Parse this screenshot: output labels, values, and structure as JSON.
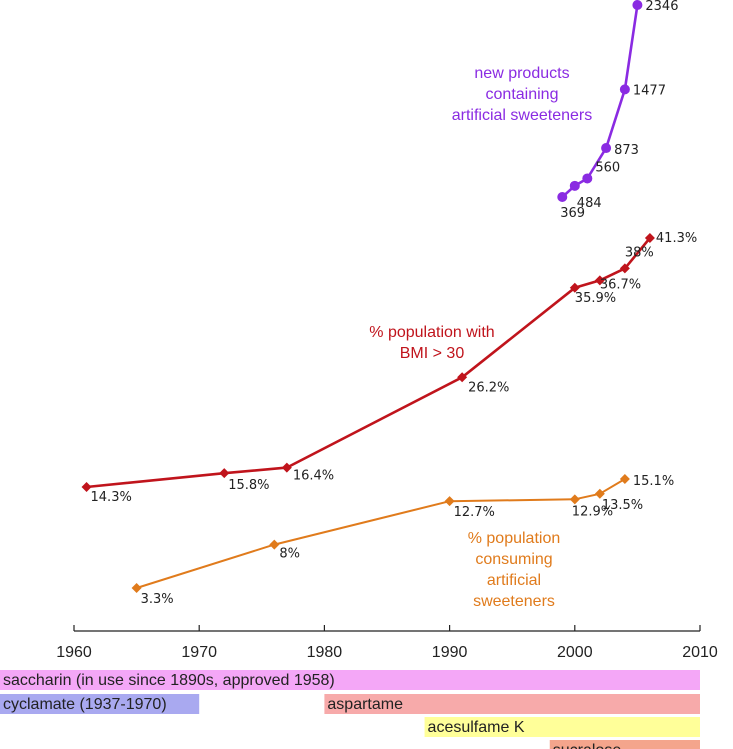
{
  "chart_data": {
    "type": "line",
    "x_axis": {
      "range": [
        1960,
        2010
      ],
      "tick_labels": [
        "1960",
        "1970",
        "1980",
        "1990",
        "2000",
        "2010"
      ],
      "grid": false
    },
    "series": [
      {
        "name": "new products containing artificial sweeteners",
        "label_lines": [
          "new products",
          "containing",
          "artificial sweeteners"
        ],
        "color": "#8a2be2",
        "marker": "circle",
        "points": [
          {
            "x": 1999,
            "y": 369,
            "label": "369"
          },
          {
            "x": 2000,
            "y": 484,
            "label": "484"
          },
          {
            "x": 2001,
            "y": 560,
            "label": "560"
          },
          {
            "x": 2002.5,
            "y": 873,
            "label": "873"
          },
          {
            "x": 2004,
            "y": 1477,
            "label": "1477"
          },
          {
            "x": 2005,
            "y": 2346,
            "label": "2346"
          }
        ]
      },
      {
        "name": "% population with BMI > 30",
        "label_lines": [
          "% population with",
          "BMI > 30"
        ],
        "color": "#c0141c",
        "marker": "diamond",
        "points": [
          {
            "x": 1961,
            "y": 14.3,
            "label": "14.3%"
          },
          {
            "x": 1972,
            "y": 15.8,
            "label": "15.8%"
          },
          {
            "x": 1977,
            "y": 16.4,
            "label": "16.4%"
          },
          {
            "x": 1991,
            "y": 26.2,
            "label": "26.2%"
          },
          {
            "x": 2000,
            "y": 35.9,
            "label": "35.9%"
          },
          {
            "x": 2002,
            "y": 36.7,
            "label": "36.7%"
          },
          {
            "x": 2004,
            "y": 38.0,
            "label": "38%"
          },
          {
            "x": 2006,
            "y": 41.3,
            "label": "41.3%"
          }
        ]
      },
      {
        "name": "% population consuming artificial sweeteners",
        "label_lines": [
          "% population",
          "consuming",
          "artificial",
          "sweeteners"
        ],
        "color": "#e07b1c",
        "marker": "diamond",
        "points": [
          {
            "x": 1965,
            "y": 3.3,
            "label": "3.3%"
          },
          {
            "x": 1976,
            "y": 8.0,
            "label": "8%"
          },
          {
            "x": 1990,
            "y": 12.7,
            "label": "12.7%"
          },
          {
            "x": 2000,
            "y": 12.9,
            "label": "12.9%"
          },
          {
            "x": 2002,
            "y": 13.5,
            "label": "13.5%"
          },
          {
            "x": 2004,
            "y": 15.1,
            "label": "15.1%"
          }
        ]
      }
    ],
    "timeline_bars": [
      {
        "label": "saccharin (in use since 1890s, approved 1958)",
        "start": 1954,
        "end": 2010,
        "color": "#f4a7f7"
      },
      {
        "label": "cyclamate (1937-1970)",
        "start": 1954,
        "end": 1970,
        "color": "#a9a9f0"
      },
      {
        "label": "aspartame",
        "start": 1980,
        "end": 2010,
        "color": "#f7aaaa"
      },
      {
        "label": "acesulfame K",
        "start": 1988,
        "end": 2010,
        "color": "#ffff99"
      },
      {
        "label": "sucralose",
        "start": 1998,
        "end": 2010,
        "color": "#f4a58c"
      }
    ]
  }
}
